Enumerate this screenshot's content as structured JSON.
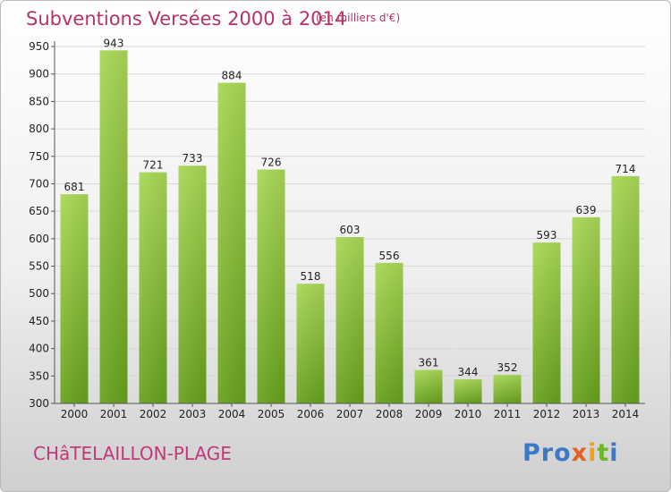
{
  "header": {
    "title": "Subventions Versées 2000 à 2014",
    "unit": "(en milliers d'€)"
  },
  "footer": {
    "town": "CHâTELAILLON-PLAGE",
    "logo": [
      "Pro",
      "x",
      "i",
      "t",
      "i"
    ]
  },
  "colors": {
    "title": "#b5326a",
    "bar_light": "#a4d450",
    "bar_dark": "#6aa320",
    "grid": "#d8d8d8"
  },
  "chart_data": {
    "type": "bar",
    "title": "Subventions Versées 2000 à 2014",
    "subtitle": "(en milliers d'€)",
    "xlabel": "",
    "ylabel": "",
    "categories": [
      "2000",
      "2001",
      "2002",
      "2003",
      "2004",
      "2005",
      "2006",
      "2007",
      "2008",
      "2009",
      "2010",
      "2011",
      "2012",
      "2013",
      "2014"
    ],
    "values": [
      681,
      943,
      721,
      733,
      884,
      726,
      518,
      603,
      556,
      361,
      344,
      352,
      593,
      639,
      714
    ],
    "ylim": [
      300,
      950
    ],
    "yticks": [
      300,
      350,
      400,
      450,
      500,
      550,
      600,
      650,
      700,
      750,
      800,
      850,
      900,
      950
    ],
    "grid": true,
    "data_labels": true
  }
}
